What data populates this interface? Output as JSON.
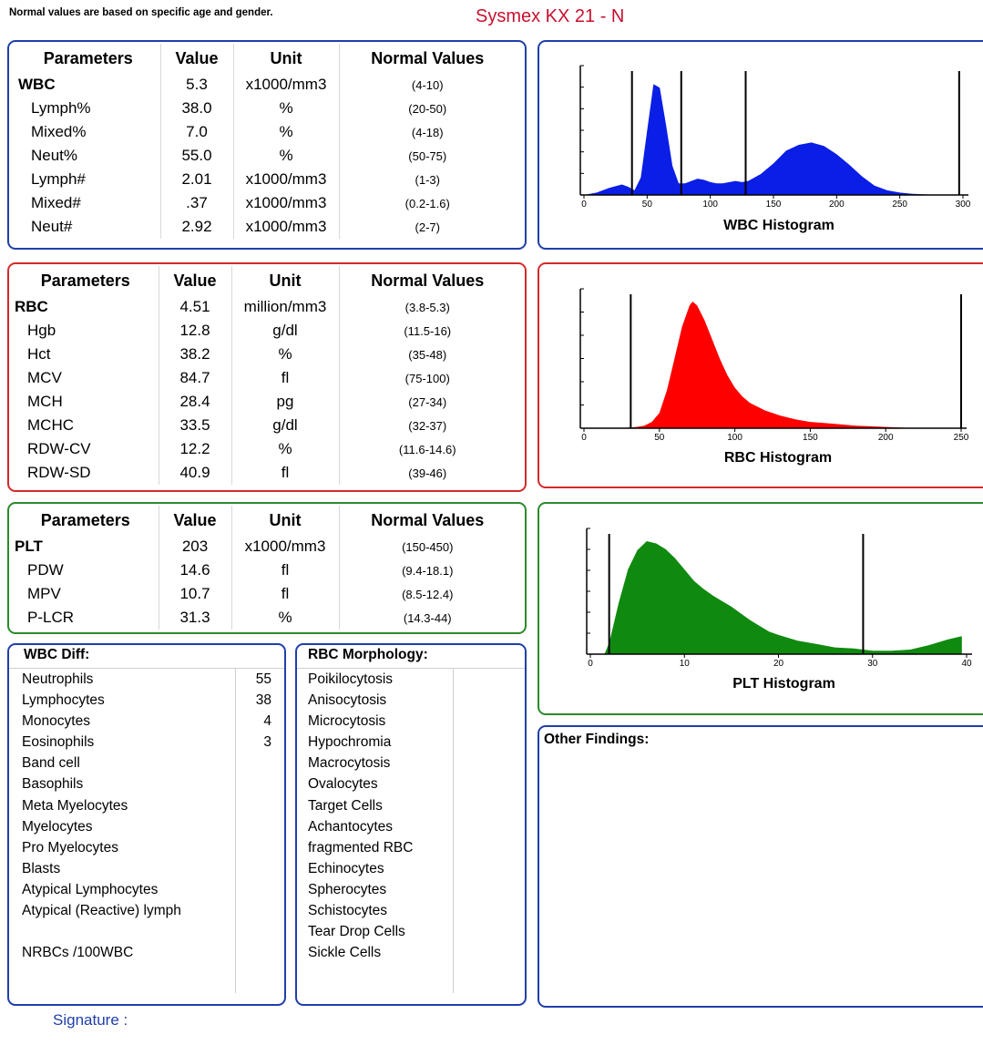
{
  "header": {
    "note": "Normal values are based on specific age and gender.",
    "device": "Sysmex KX 21 - N"
  },
  "table_headers": {
    "param": "Parameters",
    "value": "Value",
    "unit": "Unit",
    "normal": "Normal Values"
  },
  "wbc_table": [
    {
      "name": "WBC",
      "value": "5.3",
      "unit": "x1000/mm3",
      "normal": "(4-10)",
      "main": true
    },
    {
      "name": "Lymph%",
      "value": "38.0",
      "unit": "%",
      "normal": "(20-50)"
    },
    {
      "name": "Mixed%",
      "value": "7.0",
      "unit": "%",
      "normal": "(4-18)"
    },
    {
      "name": "Neut%",
      "value": "55.0",
      "unit": "%",
      "normal": "(50-75)"
    },
    {
      "name": "Lymph#",
      "value": "2.01",
      "unit": "x1000/mm3",
      "normal": "(1-3)"
    },
    {
      "name": "Mixed#",
      "value": ".37",
      "unit": "x1000/mm3",
      "normal": "(0.2-1.6)"
    },
    {
      "name": "Neut#",
      "value": "2.92",
      "unit": "x1000/mm3",
      "normal": "(2-7)"
    }
  ],
  "rbc_table": [
    {
      "name": "RBC",
      "value": "4.51",
      "unit": "million/mm3",
      "normal": "(3.8-5.3)",
      "main": true
    },
    {
      "name": "Hgb",
      "value": "12.8",
      "unit": "g/dl",
      "normal": "(11.5-16)"
    },
    {
      "name": "Hct",
      "value": "38.2",
      "unit": "%",
      "normal": "(35-48)"
    },
    {
      "name": "MCV",
      "value": "84.7",
      "unit": "fl",
      "normal": "(75-100)"
    },
    {
      "name": "MCH",
      "value": "28.4",
      "unit": "pg",
      "normal": "(27-34)"
    },
    {
      "name": "MCHC",
      "value": "33.5",
      "unit": "g/dl",
      "normal": "(32-37)"
    },
    {
      "name": "RDW-CV",
      "value": "12.2",
      "unit": "%",
      "normal": "(11.6-14.6)"
    },
    {
      "name": "RDW-SD",
      "value": "40.9",
      "unit": "fl",
      "normal": "(39-46)"
    }
  ],
  "plt_table": [
    {
      "name": "PLT",
      "value": "203",
      "unit": "x1000/mm3",
      "normal": "(150-450)",
      "main": true
    },
    {
      "name": "PDW",
      "value": "14.6",
      "unit": "fl",
      "normal": "(9.4-18.1)"
    },
    {
      "name": "MPV",
      "value": "10.7",
      "unit": "fl",
      "normal": "(8.5-12.4)"
    },
    {
      "name": "P-LCR",
      "value": "31.3",
      "unit": "%",
      "normal": "(14.3-44)"
    }
  ],
  "wbc_diff": {
    "title": "WBC Diff:",
    "items": [
      {
        "label": "Neutrophils",
        "count": "55"
      },
      {
        "label": "Lymphocytes",
        "count": "38"
      },
      {
        "label": "Monocytes",
        "count": "4"
      },
      {
        "label": "Eosinophils",
        "count": "3"
      },
      {
        "label": "Band cell",
        "count": ""
      },
      {
        "label": "Basophils",
        "count": ""
      },
      {
        "label": "Meta Myelocytes",
        "count": ""
      },
      {
        "label": "Myelocytes",
        "count": ""
      },
      {
        "label": "Pro Myelocytes",
        "count": ""
      },
      {
        "label": "Blasts",
        "count": ""
      },
      {
        "label": "Atypical Lymphocytes",
        "count": ""
      },
      {
        "label": "Atypical (Reactive) lymph",
        "count": ""
      },
      {
        "label": "",
        "count": ""
      },
      {
        "label": "NRBCs /100WBC",
        "count": ""
      }
    ]
  },
  "rbc_morph": {
    "title": "RBC Morphology:",
    "items": [
      "Poikilocytosis",
      "Anisocytosis",
      "Microcytosis",
      "Hypochromia",
      "Macrocytosis",
      "Ovalocytes",
      "Target Cells",
      "Achantocytes",
      "fragmented RBC",
      "Echinocytes",
      "Spherocytes",
      "Schistocytes",
      "Tear Drop Cells",
      "Sickle Cells"
    ]
  },
  "other_findings": {
    "title": "Other Findings:"
  },
  "signature": "Signature :",
  "colors": {
    "blue": "#1f3fa8",
    "red": "#d42a2a",
    "green": "#2b8a2b",
    "wbc_fill": "#0a1ee6",
    "rbc_fill": "#ff0000",
    "plt_fill": "#0f8a0f",
    "device_text": "#c8102e"
  },
  "chart_data": [
    {
      "type": "area",
      "title": "WBC Histogram",
      "xlim": [
        0,
        300
      ],
      "xticks": [
        "0",
        "50",
        "100",
        "150",
        "200",
        "250",
        "300"
      ],
      "discriminators": [
        38,
        77,
        128,
        297
      ],
      "x": [
        0,
        10,
        20,
        30,
        35,
        40,
        45,
        50,
        55,
        60,
        65,
        70,
        75,
        80,
        85,
        90,
        95,
        100,
        105,
        110,
        115,
        120,
        125,
        130,
        140,
        150,
        160,
        170,
        180,
        190,
        200,
        210,
        220,
        230,
        240,
        250,
        260,
        270,
        280,
        290,
        295
      ],
      "y": [
        0,
        0.02,
        0.06,
        0.09,
        0.07,
        0.04,
        0.15,
        0.55,
        0.95,
        0.92,
        0.6,
        0.25,
        0.1,
        0.1,
        0.12,
        0.14,
        0.13,
        0.11,
        0.1,
        0.1,
        0.11,
        0.12,
        0.11,
        0.12,
        0.18,
        0.27,
        0.38,
        0.43,
        0.45,
        0.42,
        0.35,
        0.26,
        0.16,
        0.08,
        0.04,
        0.02,
        0.01,
        0.005,
        0,
        0,
        0
      ]
    },
    {
      "type": "area",
      "title": "RBC Histogram",
      "xlim": [
        0,
        250
      ],
      "xticks": [
        "0",
        "50",
        "100",
        "150",
        "200",
        "250"
      ],
      "discriminators": [
        31,
        250
      ],
      "x": [
        0,
        10,
        20,
        30,
        35,
        40,
        45,
        50,
        55,
        60,
        65,
        70,
        72,
        75,
        80,
        85,
        90,
        95,
        100,
        105,
        110,
        120,
        130,
        140,
        150,
        160,
        170,
        180,
        190,
        200,
        210,
        220,
        230,
        240
      ],
      "y": [
        0,
        0,
        0,
        0.005,
        0.01,
        0.02,
        0.05,
        0.12,
        0.3,
        0.55,
        0.8,
        0.97,
        1.0,
        0.97,
        0.85,
        0.7,
        0.55,
        0.42,
        0.32,
        0.25,
        0.2,
        0.14,
        0.1,
        0.07,
        0.05,
        0.04,
        0.03,
        0.02,
        0.015,
        0.01,
        0.005,
        0,
        0,
        0
      ]
    },
    {
      "type": "area",
      "title": "PLT Histogram",
      "xlim": [
        0,
        40
      ],
      "xticks": [
        "0",
        "10",
        "20",
        "30",
        "40"
      ],
      "discriminators": [
        2,
        29
      ],
      "x": [
        1.5,
        2,
        3,
        4,
        5,
        6,
        7,
        8,
        9,
        10,
        11,
        12,
        13,
        14,
        15,
        16,
        17,
        18,
        19,
        20,
        22,
        24,
        26,
        28,
        30,
        32,
        34,
        36,
        38,
        39.5
      ],
      "y": [
        0,
        0.1,
        0.45,
        0.75,
        0.92,
        1.0,
        0.98,
        0.93,
        0.85,
        0.75,
        0.65,
        0.58,
        0.52,
        0.47,
        0.42,
        0.36,
        0.3,
        0.25,
        0.2,
        0.17,
        0.12,
        0.09,
        0.06,
        0.05,
        0.03,
        0.03,
        0.04,
        0.08,
        0.13,
        0.16
      ]
    }
  ]
}
